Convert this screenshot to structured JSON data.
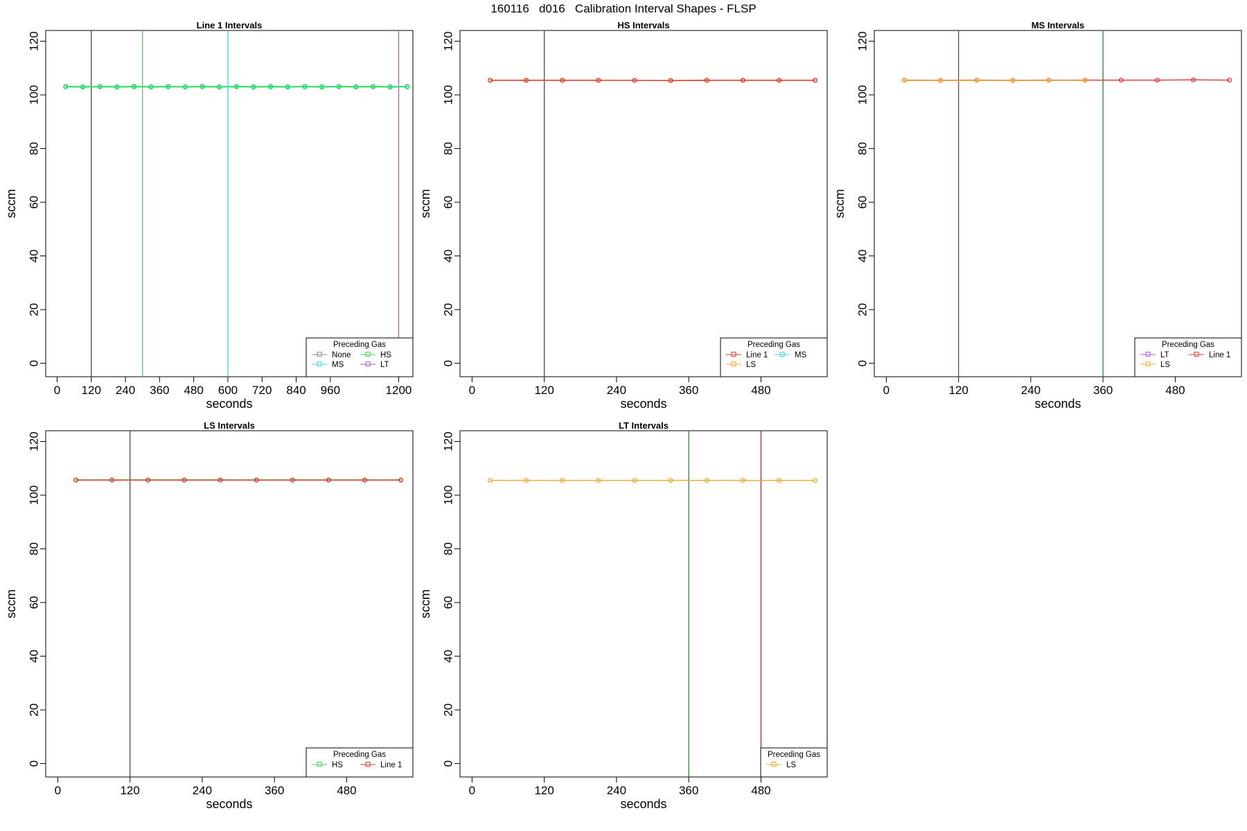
{
  "title": "160116   d016   Calibration Interval Shapes - FLSP",
  "colors": {
    "None": "#8c8c8c",
    "MS": "#3dd9e6",
    "HS": "#33dd44",
    "LT": "#b354e6",
    "Line 1": "#e63333",
    "LS": "#f0a830",
    "darkolive": "#3c5a1e",
    "darkgreen": "#2e8b3a",
    "darkred": "#b03040"
  },
  "chart_data": [
    {
      "type": "line",
      "title": "Line 1 Intervals",
      "xlabel": "seconds",
      "ylabel": "sccm",
      "xlim": [
        -40,
        1250
      ],
      "ylim": [
        -5,
        124
      ],
      "xticks": [
        0,
        120,
        240,
        360,
        480,
        600,
        720,
        840,
        960,
        1200
      ],
      "yticks": [
        0,
        20,
        40,
        60,
        80,
        100,
        120
      ],
      "vlines": [
        {
          "x": 120,
          "color": "darkolive"
        },
        {
          "x": 300,
          "color": "HS"
        },
        {
          "x": 600,
          "color": "MS"
        },
        {
          "x": 1200,
          "color": "LT"
        }
      ],
      "series": [
        {
          "name": "MS",
          "x": [
            30,
            90,
            150,
            210,
            270,
            330,
            390,
            450,
            510,
            570,
            630,
            690,
            750,
            810,
            870,
            930,
            990,
            1050,
            1110,
            1170,
            1230
          ],
          "y": [
            103.2,
            103.1,
            103.2,
            103.1,
            103.2,
            103.1,
            103.2,
            103.1,
            103.2,
            103.1,
            103.2,
            103.1,
            103.2,
            103.1,
            103.2,
            103.1,
            103.2,
            103.1,
            103.2,
            103.1,
            103.2
          ]
        },
        {
          "name": "HS",
          "x": [
            30,
            90,
            150,
            210,
            270,
            330,
            390,
            450,
            510,
            570,
            630,
            690,
            750,
            810,
            870,
            930,
            990,
            1050,
            1110,
            1170,
            1230
          ],
          "y": [
            103.0,
            102.9,
            103.0,
            102.9,
            103.0,
            102.9,
            103.0,
            102.9,
            103.0,
            102.9,
            103.0,
            102.9,
            103.0,
            102.9,
            103.0,
            102.9,
            103.0,
            102.9,
            103.0,
            102.9,
            103.0
          ]
        }
      ],
      "legend": {
        "title": "Preceding Gas",
        "placement": "bottom-right",
        "entries": [
          "None",
          "HS",
          "MS",
          "LT"
        ]
      }
    },
    {
      "type": "line",
      "title": "HS Intervals",
      "xlabel": "seconds",
      "ylabel": "sccm",
      "xlim": [
        -20,
        590
      ],
      "ylim": [
        -5,
        124
      ],
      "xticks": [
        0,
        120,
        240,
        360,
        480
      ],
      "yticks": [
        0,
        20,
        40,
        60,
        80,
        100,
        120
      ],
      "vlines": [
        {
          "x": 120,
          "color": "darkolive"
        }
      ],
      "series": [
        {
          "name": "LS",
          "x": [
            30,
            90,
            150,
            210,
            270,
            330,
            390,
            450,
            510,
            570
          ],
          "y": [
            105.5,
            105.5,
            105.5,
            105.5,
            105.4,
            105.4,
            105.5,
            105.5,
            105.5,
            105.5
          ]
        },
        {
          "name": "Line 1",
          "x": [
            30,
            90,
            150,
            210,
            270,
            330,
            390,
            450,
            510,
            570
          ],
          "y": [
            105.4,
            105.4,
            105.4,
            105.4,
            105.4,
            105.3,
            105.4,
            105.4,
            105.4,
            105.4
          ]
        }
      ],
      "legend": {
        "title": "Preceding Gas",
        "placement": "bottom-right",
        "entries": [
          "Line 1",
          "MS",
          "LS"
        ]
      }
    },
    {
      "type": "line",
      "title": "MS Intervals",
      "xlabel": "seconds",
      "ylabel": "sccm",
      "xlim": [
        -20,
        590
      ],
      "ylim": [
        -5,
        124
      ],
      "xticks": [
        0,
        120,
        240,
        360,
        480
      ],
      "yticks": [
        0,
        20,
        40,
        60,
        80,
        100,
        120
      ],
      "vlines": [
        {
          "x": 120,
          "color": "darkred"
        },
        {
          "x": 360,
          "color": "darkgreen"
        }
      ],
      "series": [
        {
          "name": "Line 1",
          "x": [
            30,
            90,
            150,
            210,
            270,
            330,
            390,
            450,
            510,
            570
          ],
          "y": [
            105.5,
            105.4,
            105.5,
            105.4,
            105.5,
            105.5,
            105.5,
            105.5,
            105.6,
            105.5
          ]
        },
        {
          "name": "LS",
          "x": [
            30,
            90,
            150,
            210,
            270,
            330
          ],
          "y": [
            105.4,
            105.3,
            105.4,
            105.3,
            105.4,
            105.4
          ]
        }
      ],
      "legend": {
        "title": "Preceding Gas",
        "placement": "bottom-right",
        "entries": [
          "LT",
          "Line 1",
          "LS"
        ]
      }
    },
    {
      "type": "line",
      "title": "LS Intervals",
      "xlabel": "seconds",
      "ylabel": "sccm",
      "xlim": [
        -20,
        590
      ],
      "ylim": [
        -5,
        124
      ],
      "xticks": [
        0,
        120,
        240,
        360,
        480
      ],
      "yticks": [
        0,
        20,
        40,
        60,
        80,
        100,
        120
      ],
      "vlines": [
        {
          "x": 120,
          "color": "darkolive"
        }
      ],
      "series": [
        {
          "name": "HS",
          "x": [
            30,
            90,
            150,
            210,
            270,
            330,
            390,
            450,
            510,
            570
          ],
          "y": [
            105.7,
            105.7,
            105.7,
            105.7,
            105.7,
            105.7,
            105.7,
            105.7,
            105.7,
            105.7
          ]
        },
        {
          "name": "Line 1",
          "x": [
            30,
            90,
            150,
            210,
            270,
            330,
            390,
            450,
            510,
            570
          ],
          "y": [
            105.6,
            105.6,
            105.6,
            105.6,
            105.6,
            105.6,
            105.6,
            105.6,
            105.6,
            105.6
          ]
        }
      ],
      "legend": {
        "title": "Preceding Gas",
        "placement": "bottom-right",
        "entries": [
          "HS",
          "Line 1"
        ]
      }
    },
    {
      "type": "line",
      "title": "LT Intervals",
      "xlabel": "seconds",
      "ylabel": "sccm",
      "xlim": [
        -20,
        590
      ],
      "ylim": [
        -5,
        124
      ],
      "xticks": [
        0,
        120,
        240,
        360,
        480
      ],
      "yticks": [
        0,
        20,
        40,
        60,
        80,
        100,
        120
      ],
      "vlines": [
        {
          "x": 360,
          "color": "darkgreen"
        },
        {
          "x": 480,
          "color": "darkred"
        }
      ],
      "series": [
        {
          "name": "LS",
          "x": [
            30,
            90,
            150,
            210,
            270,
            330,
            390,
            450,
            510,
            570
          ],
          "y": [
            105.5,
            105.5,
            105.5,
            105.5,
            105.5,
            105.5,
            105.5,
            105.5,
            105.5,
            105.5
          ]
        }
      ],
      "legend": {
        "title": "Preceding Gas",
        "placement": "bottom-right",
        "entries": [
          "LS"
        ]
      }
    }
  ]
}
